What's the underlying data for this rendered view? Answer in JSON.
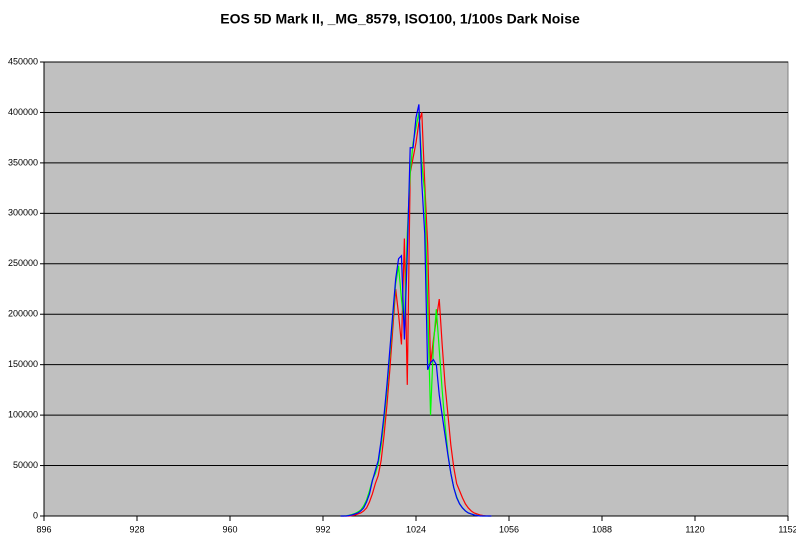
{
  "chart_data": {
    "type": "line",
    "title": "EOS 5D Mark II, _MG_8579, ISO100, 1/100s Dark Noise",
    "x": [
      998,
      999,
      1000,
      1001,
      1002,
      1003,
      1004,
      1005,
      1006,
      1007,
      1008,
      1009,
      1010,
      1011,
      1012,
      1013,
      1014,
      1015,
      1016,
      1017,
      1018,
      1019,
      1020,
      1021,
      1022,
      1023,
      1024,
      1025,
      1026,
      1027,
      1028,
      1029,
      1030,
      1031,
      1032,
      1033,
      1034,
      1035,
      1036,
      1037,
      1038,
      1039,
      1040,
      1041,
      1042,
      1043,
      1044,
      1045,
      1046,
      1047,
      1048,
      1049,
      1050
    ],
    "series": [
      {
        "color": "#ff0000",
        "values": [
          0,
          0,
          0,
          0,
          500,
          1000,
          2000,
          3000,
          5000,
          8000,
          14000,
          22000,
          32000,
          40000,
          55000,
          80000,
          110000,
          145000,
          185000,
          225000,
          200000,
          170000,
          275000,
          130000,
          340000,
          355000,
          370000,
          390000,
          400000,
          330000,
          270000,
          150000,
          175000,
          195000,
          215000,
          170000,
          130000,
          100000,
          70000,
          48000,
          32000,
          25000,
          18000,
          12000,
          8000,
          5000,
          3000,
          2000,
          1000,
          500,
          200,
          0,
          0
        ]
      },
      {
        "color": "#00ff00",
        "values": [
          0,
          0,
          300,
          800,
          1500,
          2500,
          4000,
          6000,
          10000,
          16000,
          25000,
          36000,
          42000,
          52000,
          70000,
          95000,
          125000,
          160000,
          195000,
          230000,
          248000,
          215000,
          190000,
          280000,
          340000,
          370000,
          385000,
          400000,
          350000,
          320000,
          210000,
          100000,
          170000,
          205000,
          165000,
          125000,
          90000,
          62000,
          42000,
          28000,
          19000,
          12000,
          8000,
          5000,
          3000,
          2000,
          1200,
          600,
          200,
          0,
          0,
          0,
          0
        ]
      },
      {
        "color": "#0000ff",
        "values": [
          0,
          0,
          0,
          500,
          1000,
          2000,
          3000,
          5000,
          8000,
          14000,
          22000,
          35000,
          45000,
          55000,
          75000,
          100000,
          130000,
          165000,
          200000,
          235000,
          255000,
          258000,
          175000,
          260000,
          365000,
          365000,
          395000,
          408000,
          330000,
          280000,
          145000,
          152000,
          155000,
          150000,
          120000,
          100000,
          80000,
          60000,
          42000,
          28000,
          18000,
          12000,
          8000,
          5000,
          3000,
          2000,
          1000,
          500,
          0,
          0,
          0,
          0,
          0
        ]
      }
    ],
    "xlim": [
      896,
      1152
    ],
    "xticks": [
      896,
      928,
      960,
      992,
      1024,
      1056,
      1088,
      1120,
      1152
    ],
    "ylim": [
      0,
      450000
    ],
    "yticks": [
      0,
      50000,
      100000,
      150000,
      200000,
      250000,
      300000,
      350000,
      400000,
      450000
    ],
    "grid": true,
    "background": "#c0c0c0"
  }
}
